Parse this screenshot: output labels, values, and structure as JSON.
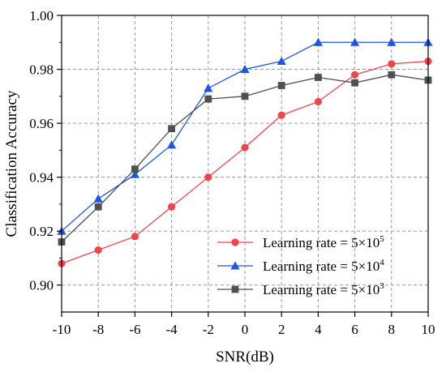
{
  "chart_data": {
    "type": "line",
    "title": "",
    "xlabel": "SNR(dB)",
    "ylabel": "Classification Accuracy",
    "x": [
      -10,
      -8,
      -6,
      -4,
      -2,
      0,
      2,
      4,
      6,
      8,
      10
    ],
    "xlim": [
      -10,
      10
    ],
    "ylim": [
      0.89,
      1.0
    ],
    "x_ticks": [
      "-10",
      "-8",
      "-6",
      "-4",
      "-2",
      "0",
      "2",
      "4",
      "6",
      "8",
      "10"
    ],
    "y_ticks": [
      "0.90",
      "0.92",
      "0.94",
      "0.96",
      "0.98",
      "1.00"
    ],
    "grid": true,
    "legend_position": "bottom-right",
    "series": [
      {
        "name": "Learning rate = 5×10",
        "exponent": "5",
        "color": "#f0454d",
        "marker": "circle",
        "values": [
          0.908,
          0.913,
          0.918,
          0.929,
          0.94,
          0.951,
          0.963,
          0.968,
          0.978,
          0.982,
          0.983
        ]
      },
      {
        "name": "Learning rate = 5×10",
        "exponent": "4",
        "color": "#1f55e0",
        "marker": "triangle",
        "values": [
          0.92,
          0.932,
          0.941,
          0.952,
          0.973,
          0.98,
          0.983,
          0.99,
          0.99,
          0.99,
          0.99
        ]
      },
      {
        "name": "Learning rate = 5×10",
        "exponent": "3",
        "color": "#505050",
        "marker": "square",
        "values": [
          0.916,
          0.929,
          0.943,
          0.958,
          0.969,
          0.97,
          0.974,
          0.977,
          0.975,
          0.978,
          0.976
        ]
      }
    ]
  }
}
